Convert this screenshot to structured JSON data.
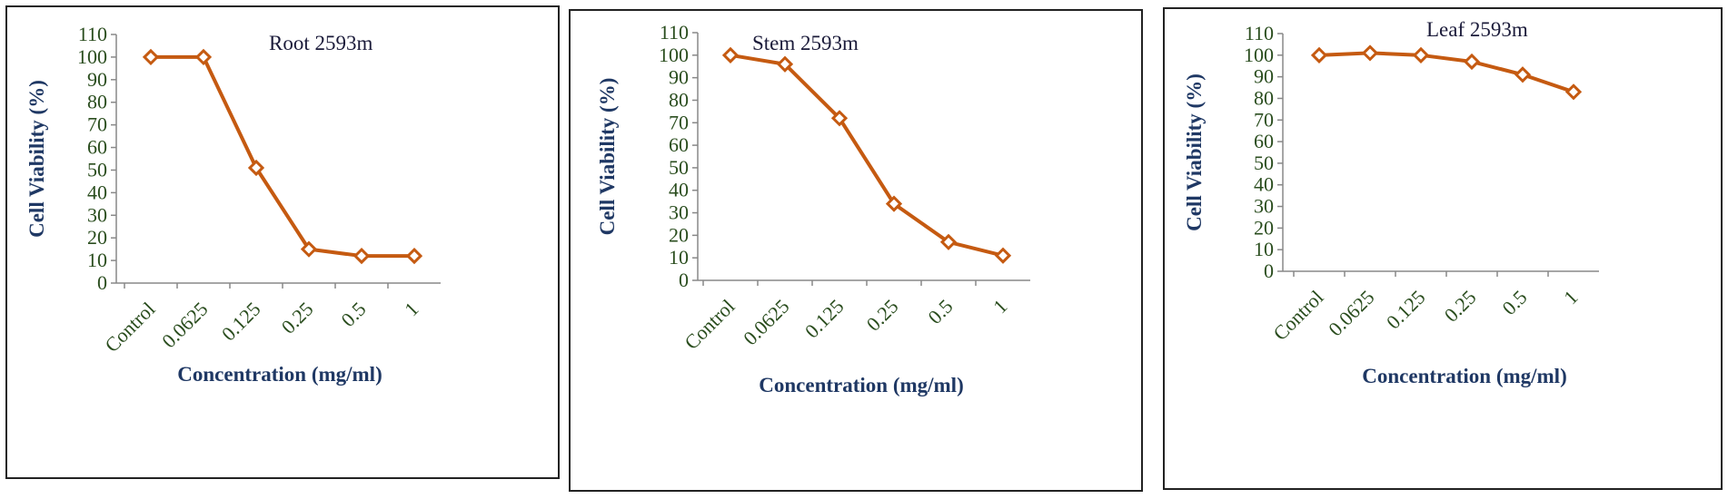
{
  "chart_data": [
    {
      "type": "line",
      "title": "Root 2593m",
      "xlabel": "Concentration (mg/ml)",
      "ylabel": "Cell Viability (%)",
      "categories": [
        "Control",
        "0.0625",
        "0.125",
        "0.25",
        "0.5",
        "1"
      ],
      "yticks": [
        "0",
        "10",
        "20",
        "30",
        "40",
        "50",
        "60",
        "70",
        "80",
        "90",
        "100",
        "110"
      ],
      "ylim": [
        0,
        110
      ],
      "grid": false,
      "legend": "none",
      "series": [
        {
          "values": [
            100,
            100,
            51,
            15,
            12,
            12
          ],
          "color": "#c55a11",
          "marker": "diamond"
        }
      ]
    },
    {
      "type": "line",
      "title": "Stem 2593m",
      "xlabel": "Concentration (mg/ml)",
      "ylabel": "Cell Viability (%)",
      "categories": [
        "Control",
        "0.0625",
        "0.125",
        "0.25",
        "0.5",
        "1"
      ],
      "yticks": [
        "0",
        "10",
        "20",
        "30",
        "40",
        "50",
        "60",
        "70",
        "80",
        "90",
        "100",
        "110"
      ],
      "ylim": [
        0,
        110
      ],
      "grid": false,
      "legend": "none",
      "series": [
        {
          "values": [
            100,
            96,
            72,
            34,
            17,
            11
          ],
          "color": "#c55a11",
          "marker": "diamond"
        }
      ]
    },
    {
      "type": "line",
      "title": "Leaf 2593m",
      "xlabel": "Concentration (mg/ml)",
      "ylabel": "Cell Viability (%)",
      "categories": [
        "Control",
        "0.0625",
        "0.125",
        "0.25",
        "0.5",
        "1"
      ],
      "yticks": [
        "0",
        "10",
        "20",
        "30",
        "40",
        "50",
        "60",
        "70",
        "80",
        "90",
        "100",
        "110"
      ],
      "ylim": [
        0,
        110
      ],
      "grid": false,
      "legend": "none",
      "series": [
        {
          "values": [
            100,
            101,
            100,
            97,
            91,
            83
          ],
          "color": "#c55a11",
          "marker": "diamond"
        }
      ]
    }
  ]
}
